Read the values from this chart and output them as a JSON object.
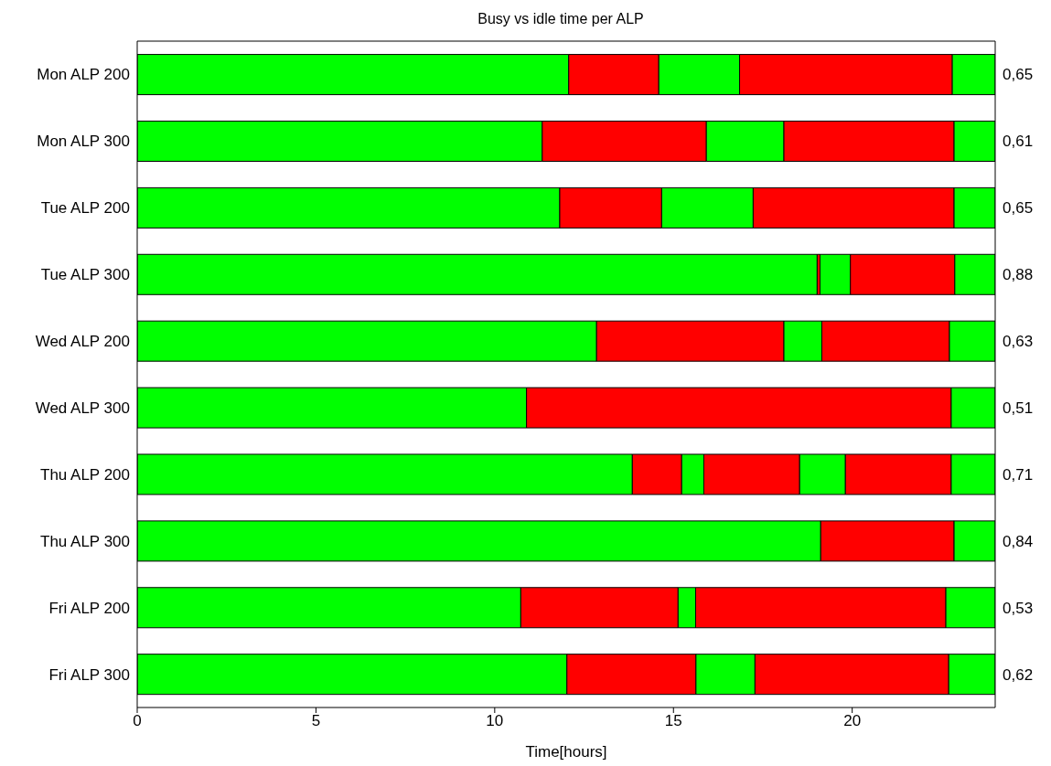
{
  "chart_data": {
    "type": "bar",
    "title": "Busy vs idle time per ALP",
    "xlabel": "Time[hours]",
    "orientation": "horizontal",
    "stacked": true,
    "categories": [
      "Mon ALP 200",
      "Mon ALP 300",
      "Tue ALP 200",
      "Tue ALP 300",
      "Wed ALP 200",
      "Wed ALP 300",
      "Thu ALP 200",
      "Thu ALP 300",
      "Fri ALP 200",
      "Fri ALP 300"
    ],
    "y2_categories": [
      "0,65",
      "0,61",
      "0,65",
      "0,88",
      "0,63",
      "0,51",
      "0,71",
      "0,84",
      "0,53",
      "0,62"
    ],
    "series": [
      {
        "color": "#00ff00",
        "values": [
          12.07,
          11.33,
          11.82,
          19.02,
          12.85,
          10.89,
          13.85,
          19.12,
          10.73,
          12.02
        ]
      },
      {
        "color": "#ff0000",
        "values": [
          2.52,
          4.59,
          2.85,
          0.08,
          5.24,
          11.88,
          1.38,
          3.73,
          4.4,
          3.61
        ]
      },
      {
        "color": "#00ff00",
        "values": [
          2.26,
          2.17,
          2.56,
          0.85,
          1.06,
          1.23,
          0.62,
          1.15,
          0.49,
          1.65
        ]
      },
      {
        "color": "#ff0000",
        "values": [
          5.95,
          4.76,
          5.62,
          2.92,
          3.57,
          null,
          2.68,
          null,
          7.0,
          5.42
        ]
      },
      {
        "color": "#00ff00",
        "values": [
          1.2,
          1.15,
          1.15,
          1.13,
          1.28,
          null,
          1.28,
          null,
          1.38,
          1.3
        ]
      },
      {
        "color": "#ff0000",
        "values": [
          null,
          null,
          null,
          null,
          null,
          null,
          2.96,
          null,
          null,
          null
        ]
      },
      {
        "color": "#00ff00",
        "values": [
          null,
          null,
          null,
          null,
          null,
          null,
          1.23,
          null,
          null,
          null
        ]
      }
    ],
    "xlim": [
      0,
      24
    ],
    "xticks": [
      0,
      5,
      10,
      15,
      20
    ],
    "grid": false
  }
}
